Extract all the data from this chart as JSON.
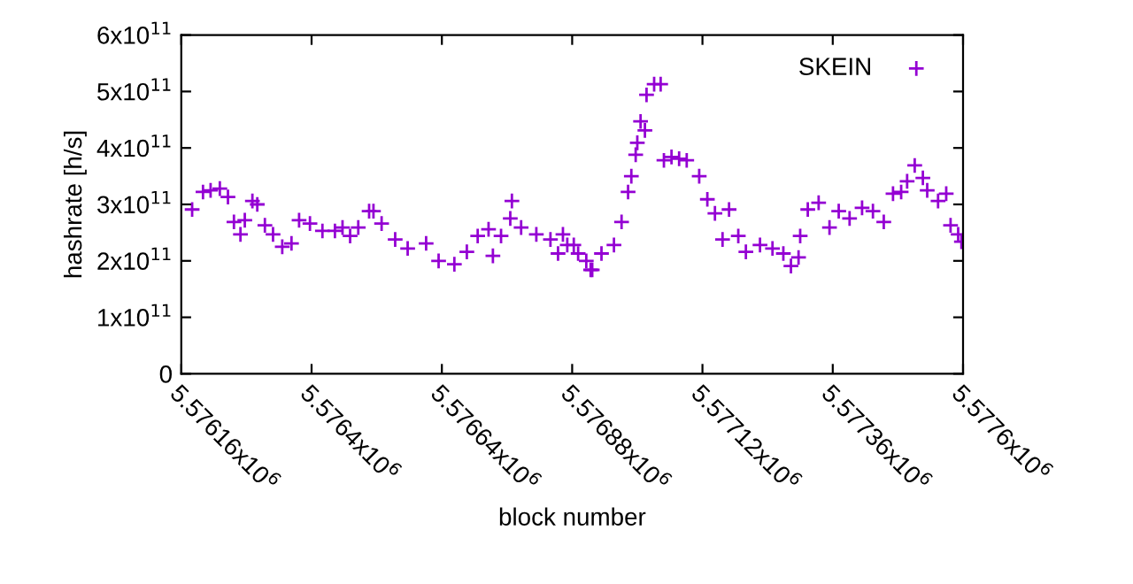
{
  "chart_data": {
    "type": "scatter",
    "xlabel": "block number",
    "ylabel": "hashrate [h/s]",
    "xlim": [
      5576160,
      5577600
    ],
    "xticks": [
      {
        "value": 5576160,
        "label": "5.57616x10$^{6}$"
      },
      {
        "value": 5576400,
        "label": "5.5764x10$^{6}$"
      },
      {
        "value": 5576640,
        "label": "5.57664x10$^{6}$"
      },
      {
        "value": 5576880,
        "label": "5.57688x10$^{6}$"
      },
      {
        "value": 5577120,
        "label": "5.57712x10$^{6}$"
      },
      {
        "value": 5577360,
        "label": "5.57736x10$^{6}$"
      },
      {
        "value": 5577600,
        "label": "5.5776x10$^{6}$"
      }
    ],
    "ylim": [
      0,
      600000000000.0
    ],
    "yticks": [
      0,
      {
        "value": 100000000000.0,
        "label": "1x10$^{11}$"
      },
      {
        "value": 200000000000.0,
        "label": "2x10$^{11}$"
      },
      {
        "value": 300000000000.0,
        "label": "3x10$^{11}$"
      },
      {
        "value": 400000000000.0,
        "label": "4x10$^{11}$"
      },
      {
        "value": 500000000000.0,
        "label": "5x10$^{11}$"
      },
      {
        "value": 600000000000.0,
        "label": "6x10$^{11}$"
      }
    ],
    "grid": false,
    "legend": "top right",
    "marker": "cross",
    "series": [
      {
        "name": "SKEIN",
        "color": "#9400d3",
        "x": [
          5576180,
          5576200,
          5576214,
          5576231,
          5576246,
          5576257,
          5576269,
          5576277,
          5576291,
          5576300,
          5576314,
          5576329,
          5576346,
          5576363,
          5576377,
          5576397,
          5576420,
          5576443,
          5576457,
          5576471,
          5576486,
          5576506,
          5576514,
          5576529,
          5576554,
          5576577,
          5576611,
          5576634,
          5576663,
          5576686,
          5576706,
          5576726,
          5576734,
          5576749,
          5576766,
          5576769,
          5576786,
          5576814,
          5576840,
          5576854,
          5576863,
          5576871,
          5576883,
          5576891,
          5576906,
          5576914,
          5576917,
          5576934,
          5576957,
          5576971,
          5576983,
          5576989,
          5576997,
          5577000,
          5577006,
          5577014,
          5577017,
          5577031,
          5577043,
          5577049,
          5577063,
          5577077,
          5577091,
          5577114,
          5577129,
          5577143,
          5577157,
          5577169,
          5577186,
          5577200,
          5577226,
          5577249,
          5577269,
          5577283,
          5577297,
          5577300,
          5577314,
          5577334,
          5577354,
          5577371,
          5577391,
          5577414,
          5577434,
          5577454,
          5577471,
          5577486,
          5577497,
          5577511,
          5577526,
          5577534,
          5577554,
          5577569,
          5577577,
          5577591,
          5577597
        ],
        "values": [
          291000000000.0,
          322000000000.0,
          325000000000.0,
          328000000000.0,
          313000000000.0,
          269000000000.0,
          247000000000.0,
          272000000000.0,
          306000000000.0,
          300000000000.0,
          263000000000.0,
          247000000000.0,
          225000000000.0,
          231000000000.0,
          272000000000.0,
          266000000000.0,
          253000000000.0,
          253000000000.0,
          259000000000.0,
          244000000000.0,
          259000000000.0,
          288000000000.0,
          288000000000.0,
          266000000000.0,
          238000000000.0,
          222000000000.0,
          231000000000.0,
          200000000000.0,
          194000000000.0,
          216000000000.0,
          244000000000.0,
          256000000000.0,
          209000000000.0,
          244000000000.0,
          275000000000.0,
          306000000000.0,
          259000000000.0,
          247000000000.0,
          238000000000.0,
          213000000000.0,
          247000000000.0,
          228000000000.0,
          228000000000.0,
          213000000000.0,
          200000000000.0,
          184000000000.0,
          184000000000.0,
          213000000000.0,
          228000000000.0,
          269000000000.0,
          322000000000.0,
          350000000000.0,
          388000000000.0,
          409000000000.0,
          447000000000.0,
          431000000000.0,
          494000000000.0,
          513000000000.0,
          513000000000.0,
          378000000000.0,
          384000000000.0,
          381000000000.0,
          378000000000.0,
          350000000000.0,
          309000000000.0,
          284000000000.0,
          238000000000.0,
          291000000000.0,
          244000000000.0,
          216000000000.0,
          228000000000.0,
          222000000000.0,
          213000000000.0,
          191000000000.0,
          206000000000.0,
          244000000000.0,
          291000000000.0,
          303000000000.0,
          259000000000.0,
          288000000000.0,
          275000000000.0,
          294000000000.0,
          288000000000.0,
          269000000000.0,
          319000000000.0,
          322000000000.0,
          341000000000.0,
          369000000000.0,
          347000000000.0,
          325000000000.0,
          306000000000.0,
          319000000000.0,
          263000000000.0,
          247000000000.0,
          234000000000.0
        ]
      }
    ]
  }
}
